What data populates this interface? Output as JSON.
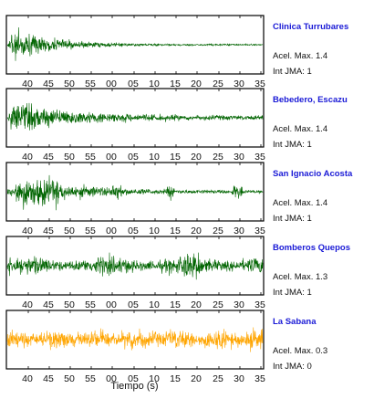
{
  "chart_data": {
    "type": "line",
    "xlabel": "Tiempo (s)",
    "x_tick_labels": [
      "40",
      "45",
      "50",
      "55",
      "00",
      "05",
      "10",
      "15",
      "20",
      "25",
      "30",
      "35"
    ],
    "acel_prefix": "Acel. Max.",
    "jma_prefix": "Int JMA:",
    "panels": [
      {
        "station": "Clinica Turrubares",
        "acel_max": "1.4",
        "int_jma": "1",
        "color": "#006400",
        "x_tick_labels": [
          "40",
          "45",
          "50",
          "55",
          "00",
          "05",
          "10",
          "15",
          "20",
          "25",
          "30",
          "35"
        ],
        "envelope": "decay",
        "amplitude": 1.4
      },
      {
        "station": "Bebedero, Escazu",
        "acel_max": "1.4",
        "int_jma": "1",
        "color": "#006400",
        "x_tick_labels": [
          "40",
          "45",
          "50",
          "55",
          "00",
          "05",
          "10",
          "15",
          "20",
          "25",
          "30",
          "35"
        ],
        "envelope": "decay-slow",
        "amplitude": 1.4
      },
      {
        "station": "San Ignacio Acosta",
        "acel_max": "1.4",
        "int_jma": "1",
        "color": "#006400",
        "x_tick_labels": [
          "40",
          "45",
          "50",
          "55",
          "00",
          "05",
          "10",
          "15",
          "20",
          "25",
          "30",
          "35"
        ],
        "envelope": "decay-bursts",
        "amplitude": 1.4
      },
      {
        "station": "Bomberos Quepos",
        "acel_max": "1.3",
        "int_jma": "1",
        "color": "#006400",
        "x_tick_labels": [
          "40",
          "45",
          "50",
          "55",
          "00",
          "05",
          "10",
          "15",
          "20",
          "25",
          "30",
          "35"
        ],
        "envelope": "steady-spike",
        "amplitude": 1.3
      },
      {
        "station": "La Sabana",
        "acel_max": "0.3",
        "int_jma": "0",
        "color": "#FFA500",
        "x_tick_labels": [
          "40",
          "45",
          "50",
          "55",
          "00",
          "05",
          "10",
          "15",
          "20",
          "25",
          "30",
          "35"
        ],
        "envelope": "noise",
        "amplitude": 0.3
      }
    ]
  }
}
